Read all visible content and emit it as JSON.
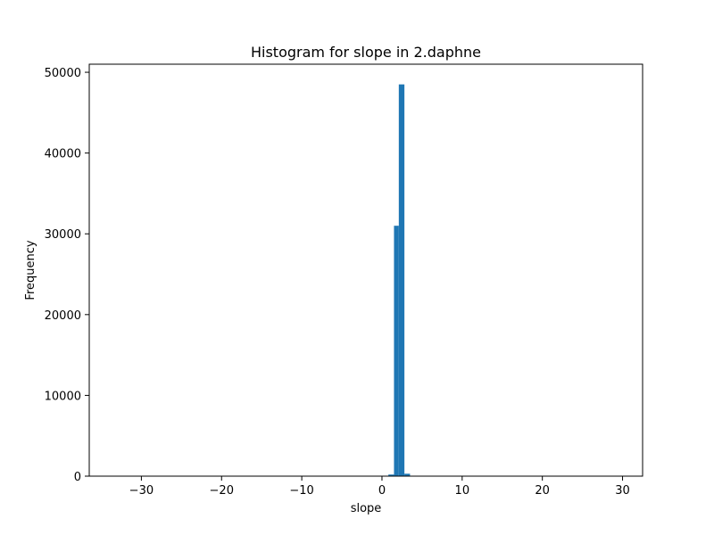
{
  "chart_data": {
    "type": "bar",
    "title": "Histogram for slope in 2.daphne",
    "xlabel": "slope",
    "ylabel": "Frequency",
    "xlim": [
      -36.5,
      32.5
    ],
    "ylim": [
      0,
      51000
    ],
    "xticks": [
      -30,
      -20,
      -10,
      0,
      10,
      20,
      30
    ],
    "xtick_labels": [
      "−30",
      "−20",
      "−10",
      "0",
      "10",
      "20",
      "30"
    ],
    "yticks": [
      0,
      10000,
      20000,
      30000,
      40000,
      50000
    ],
    "ytick_labels": [
      "0",
      "10000",
      "20000",
      "30000",
      "40000",
      "50000"
    ],
    "grid": false,
    "bar_color": "#1f77b4",
    "bins": [
      {
        "x0": 0.8,
        "x1": 1.5,
        "value": 200
      },
      {
        "x0": 1.5,
        "x1": 2.1,
        "value": 31000
      },
      {
        "x0": 2.1,
        "x1": 2.8,
        "value": 48500
      },
      {
        "x0": 2.8,
        "x1": 3.5,
        "value": 300
      }
    ]
  }
}
